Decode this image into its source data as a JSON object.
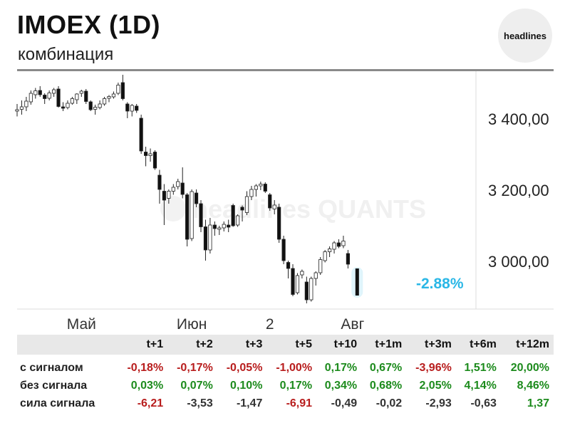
{
  "header": {
    "title": "IMOEX (1D)",
    "subtitle": "комбинация",
    "badge": "headlines"
  },
  "colors": {
    "up": "#ffffff",
    "down": "#111111",
    "outline": "#222222",
    "accent": "#2ab7e6",
    "positive": "#1d8b1d",
    "negative": "#b81d1d",
    "neutral": "#333333"
  },
  "watermark": "headlines QUANTS",
  "chart_data": {
    "type": "candlestick",
    "y_ticks": [
      "3 400,00",
      "3 200,00",
      "3 000,00"
    ],
    "y_tick_values": [
      3400,
      3200,
      3000
    ],
    "x_labels": [
      "Май",
      "Июн",
      "2",
      "Авг"
    ],
    "x_label_indexes": [
      14,
      38,
      55,
      73
    ],
    "signal_label": "-2.88%",
    "candles": [
      {
        "o": 3420,
        "h": 3440,
        "l": 3405,
        "c": 3424
      },
      {
        "o": 3425,
        "h": 3450,
        "l": 3410,
        "c": 3432
      },
      {
        "o": 3432,
        "h": 3460,
        "l": 3420,
        "c": 3448
      },
      {
        "o": 3446,
        "h": 3478,
        "l": 3438,
        "c": 3470
      },
      {
        "o": 3466,
        "h": 3485,
        "l": 3455,
        "c": 3477
      },
      {
        "o": 3478,
        "h": 3490,
        "l": 3460,
        "c": 3466
      },
      {
        "o": 3465,
        "h": 3470,
        "l": 3440,
        "c": 3455
      },
      {
        "o": 3456,
        "h": 3478,
        "l": 3450,
        "c": 3471
      },
      {
        "o": 3470,
        "h": 3485,
        "l": 3460,
        "c": 3480
      },
      {
        "o": 3482,
        "h": 3490,
        "l": 3430,
        "c": 3433
      },
      {
        "o": 3432,
        "h": 3445,
        "l": 3420,
        "c": 3428
      },
      {
        "o": 3430,
        "h": 3450,
        "l": 3425,
        "c": 3442
      },
      {
        "o": 3442,
        "h": 3460,
        "l": 3438,
        "c": 3455
      },
      {
        "o": 3452,
        "h": 3470,
        "l": 3440,
        "c": 3468
      },
      {
        "o": 3470,
        "h": 3480,
        "l": 3460,
        "c": 3476
      },
      {
        "o": 3476,
        "h": 3482,
        "l": 3440,
        "c": 3447
      },
      {
        "o": 3446,
        "h": 3450,
        "l": 3420,
        "c": 3424
      },
      {
        "o": 3425,
        "h": 3438,
        "l": 3410,
        "c": 3431
      },
      {
        "o": 3430,
        "h": 3450,
        "l": 3425,
        "c": 3440
      },
      {
        "o": 3440,
        "h": 3460,
        "l": 3435,
        "c": 3455
      },
      {
        "o": 3456,
        "h": 3465,
        "l": 3445,
        "c": 3461
      },
      {
        "o": 3460,
        "h": 3475,
        "l": 3455,
        "c": 3468
      },
      {
        "o": 3470,
        "h": 3500,
        "l": 3465,
        "c": 3493
      },
      {
        "o": 3500,
        "h": 3522,
        "l": 3450,
        "c": 3455
      },
      {
        "o": 3440,
        "h": 3445,
        "l": 3400,
        "c": 3420
      },
      {
        "o": 3420,
        "h": 3440,
        "l": 3405,
        "c": 3436
      },
      {
        "o": 3434,
        "h": 3440,
        "l": 3415,
        "c": 3422
      },
      {
        "o": 3400,
        "h": 3410,
        "l": 3300,
        "c": 3308
      },
      {
        "o": 3305,
        "h": 3320,
        "l": 3265,
        "c": 3295
      },
      {
        "o": 3295,
        "h": 3315,
        "l": 3278,
        "c": 3300
      },
      {
        "o": 3305,
        "h": 3310,
        "l": 3255,
        "c": 3260
      },
      {
        "o": 3240,
        "h": 3255,
        "l": 3160,
        "c": 3200
      },
      {
        "o": 3195,
        "h": 3215,
        "l": 3100,
        "c": 3170
      },
      {
        "o": 3175,
        "h": 3200,
        "l": 3160,
        "c": 3195
      },
      {
        "o": 3195,
        "h": 3215,
        "l": 3185,
        "c": 3206
      },
      {
        "o": 3208,
        "h": 3230,
        "l": 3200,
        "c": 3222
      },
      {
        "o": 3218,
        "h": 3262,
        "l": 3175,
        "c": 3186
      },
      {
        "o": 3185,
        "h": 3190,
        "l": 3040,
        "c": 3060
      },
      {
        "o": 3062,
        "h": 3200,
        "l": 3055,
        "c": 3194
      },
      {
        "o": 3190,
        "h": 3200,
        "l": 3150,
        "c": 3160
      },
      {
        "o": 3160,
        "h": 3170,
        "l": 3080,
        "c": 3095
      },
      {
        "o": 3095,
        "h": 3115,
        "l": 3000,
        "c": 3030
      },
      {
        "o": 3030,
        "h": 3120,
        "l": 3020,
        "c": 3100
      },
      {
        "o": 3100,
        "h": 3110,
        "l": 3070,
        "c": 3090
      },
      {
        "o": 3088,
        "h": 3098,
        "l": 3072,
        "c": 3092
      },
      {
        "o": 3092,
        "h": 3110,
        "l": 3082,
        "c": 3102
      },
      {
        "o": 3100,
        "h": 3115,
        "l": 3080,
        "c": 3094
      },
      {
        "o": 3155,
        "h": 3160,
        "l": 3095,
        "c": 3098
      },
      {
        "o": 3100,
        "h": 3130,
        "l": 3095,
        "c": 3126
      },
      {
        "o": 3150,
        "h": 3155,
        "l": 3110,
        "c": 3142
      },
      {
        "o": 3135,
        "h": 3195,
        "l": 3128,
        "c": 3180
      },
      {
        "o": 3180,
        "h": 3210,
        "l": 3170,
        "c": 3200
      },
      {
        "o": 3200,
        "h": 3215,
        "l": 3180,
        "c": 3210
      },
      {
        "o": 3210,
        "h": 3222,
        "l": 3198,
        "c": 3215
      },
      {
        "o": 3215,
        "h": 3220,
        "l": 3190,
        "c": 3195
      },
      {
        "o": 3185,
        "h": 3190,
        "l": 3140,
        "c": 3148
      },
      {
        "o": 3145,
        "h": 3170,
        "l": 3130,
        "c": 3156
      },
      {
        "o": 3150,
        "h": 3160,
        "l": 3050,
        "c": 3060
      },
      {
        "o": 3060,
        "h": 3070,
        "l": 2990,
        "c": 3000
      },
      {
        "o": 2995,
        "h": 3000,
        "l": 2950,
        "c": 2978
      },
      {
        "o": 2978,
        "h": 2990,
        "l": 2900,
        "c": 2905
      },
      {
        "o": 2910,
        "h": 2965,
        "l": 2905,
        "c": 2958
      },
      {
        "o": 2960,
        "h": 2975,
        "l": 2950,
        "c": 2970
      },
      {
        "o": 2940,
        "h": 2955,
        "l": 2880,
        "c": 2890
      },
      {
        "o": 2890,
        "h": 2955,
        "l": 2885,
        "c": 2950
      },
      {
        "o": 2950,
        "h": 2970,
        "l": 2930,
        "c": 2966
      },
      {
        "o": 2966,
        "h": 3010,
        "l": 2960,
        "c": 3003
      },
      {
        "o": 3000,
        "h": 3030,
        "l": 2995,
        "c": 3025
      },
      {
        "o": 3025,
        "h": 3040,
        "l": 3010,
        "c": 3033
      },
      {
        "o": 3032,
        "h": 3055,
        "l": 3020,
        "c": 3050
      },
      {
        "o": 3050,
        "h": 3060,
        "l": 3035,
        "c": 3040
      },
      {
        "o": 3042,
        "h": 3070,
        "l": 3035,
        "c": 3055
      },
      {
        "o": 3020,
        "h": 3030,
        "l": 2978,
        "c": 2990
      }
    ],
    "table": {
      "columns": [
        "t+1",
        "t+2",
        "t+3",
        "t+5",
        "t+10",
        "t+1m",
        "t+3m",
        "t+6m",
        "t+12m"
      ],
      "rows": [
        {
          "label": "с сигналом",
          "values": [
            "-0,18%",
            "-0,17%",
            "-0,05%",
            "-1,00%",
            "0,17%",
            "0,67%",
            "-3,96%",
            "1,51%",
            "20,00%"
          ]
        },
        {
          "label": "без сигнала",
          "values": [
            "0,03%",
            "0,07%",
            "0,10%",
            "0,17%",
            "0,34%",
            "0,68%",
            "2,05%",
            "4,14%",
            "8,46%"
          ]
        },
        {
          "label": "сила сигнала",
          "values": [
            "-6,21",
            "-3,53",
            "-1,47",
            "-6,91",
            "-0,49",
            "-0,02",
            "-2,93",
            "-0,63",
            "1,37"
          ]
        }
      ]
    }
  }
}
